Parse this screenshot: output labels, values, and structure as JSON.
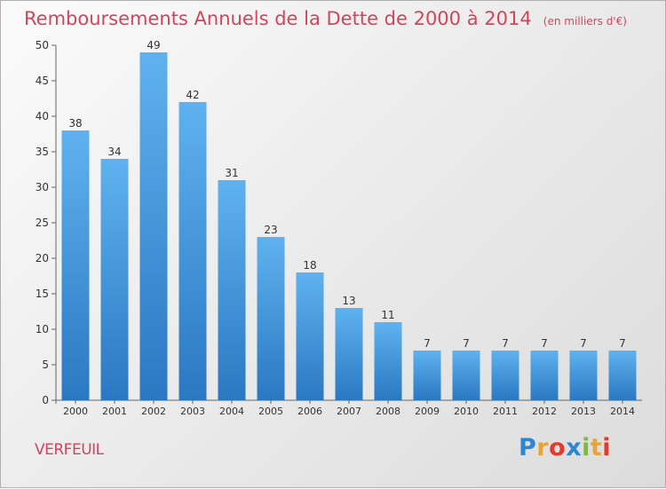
{
  "chart_data": {
    "type": "bar",
    "title": "Remboursements Annuels de la Dette de 2000 à 2014",
    "unit": "(en milliers d'€)",
    "categories": [
      "2000",
      "2001",
      "2002",
      "2003",
      "2004",
      "2005",
      "2006",
      "2007",
      "2008",
      "2009",
      "2010",
      "2011",
      "2012",
      "2013",
      "2014"
    ],
    "values": [
      38,
      34,
      49,
      42,
      31,
      23,
      18,
      13,
      11,
      7,
      7,
      7,
      7,
      7,
      7
    ],
    "ylim": [
      0,
      50
    ],
    "yticks": [
      0,
      5,
      10,
      15,
      20,
      25,
      30,
      35,
      40,
      45,
      50
    ],
    "grid": false,
    "bar_color": "#3d8fd9"
  },
  "commune": "VERFEUIL",
  "logo": {
    "text": "Proxiti"
  }
}
